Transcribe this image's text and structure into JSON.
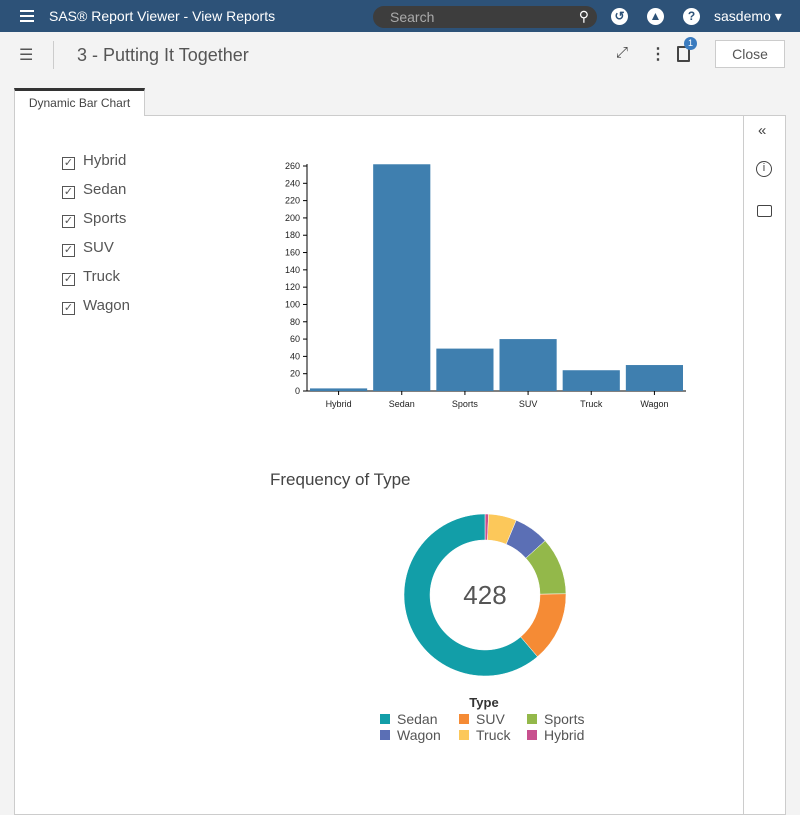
{
  "header": {
    "app_title": "SAS® Report Viewer - View Reports",
    "search_placeholder": "Search",
    "user": "sasdemo ▾"
  },
  "toolbar": {
    "report_title": "3 - Putting It Together",
    "notification_count": "1",
    "close_label": "Close"
  },
  "tabs": [
    {
      "label": "Dynamic Bar Chart"
    }
  ],
  "filters": [
    {
      "label": "Hybrid",
      "checked": true
    },
    {
      "label": "Sedan",
      "checked": true
    },
    {
      "label": "Sports",
      "checked": true
    },
    {
      "label": "SUV",
      "checked": true
    },
    {
      "label": "Truck",
      "checked": true
    },
    {
      "label": "Wagon",
      "checked": true
    }
  ],
  "chart_data": [
    {
      "type": "bar",
      "categories": [
        "Hybrid",
        "Sedan",
        "Sports",
        "SUV",
        "Truck",
        "Wagon"
      ],
      "values": [
        3,
        262,
        49,
        60,
        24,
        30
      ],
      "ylim": [
        0,
        260
      ],
      "yticks": [
        0,
        20,
        40,
        60,
        80,
        100,
        120,
        140,
        160,
        180,
        200,
        220,
        240,
        260
      ],
      "color": "#3f7faf",
      "title": "",
      "xlabel": "",
      "ylabel": ""
    },
    {
      "type": "pie",
      "title": "Frequency of Type",
      "center_label": "428",
      "legend_title": "Type",
      "categories": [
        "Hybrid",
        "Truck",
        "Wagon",
        "Sports",
        "SUV",
        "Sedan"
      ],
      "values": [
        3,
        24,
        30,
        49,
        60,
        262
      ],
      "colors": {
        "Sedan": "#129ea8",
        "SUV": "#f58b35",
        "Sports": "#93b84a",
        "Wagon": "#5b6fb5",
        "Truck": "#fcc85a",
        "Hybrid": "#c8508e"
      },
      "legend": [
        "Sedan",
        "SUV",
        "Sports",
        "Wagon",
        "Truck",
        "Hybrid"
      ]
    }
  ]
}
